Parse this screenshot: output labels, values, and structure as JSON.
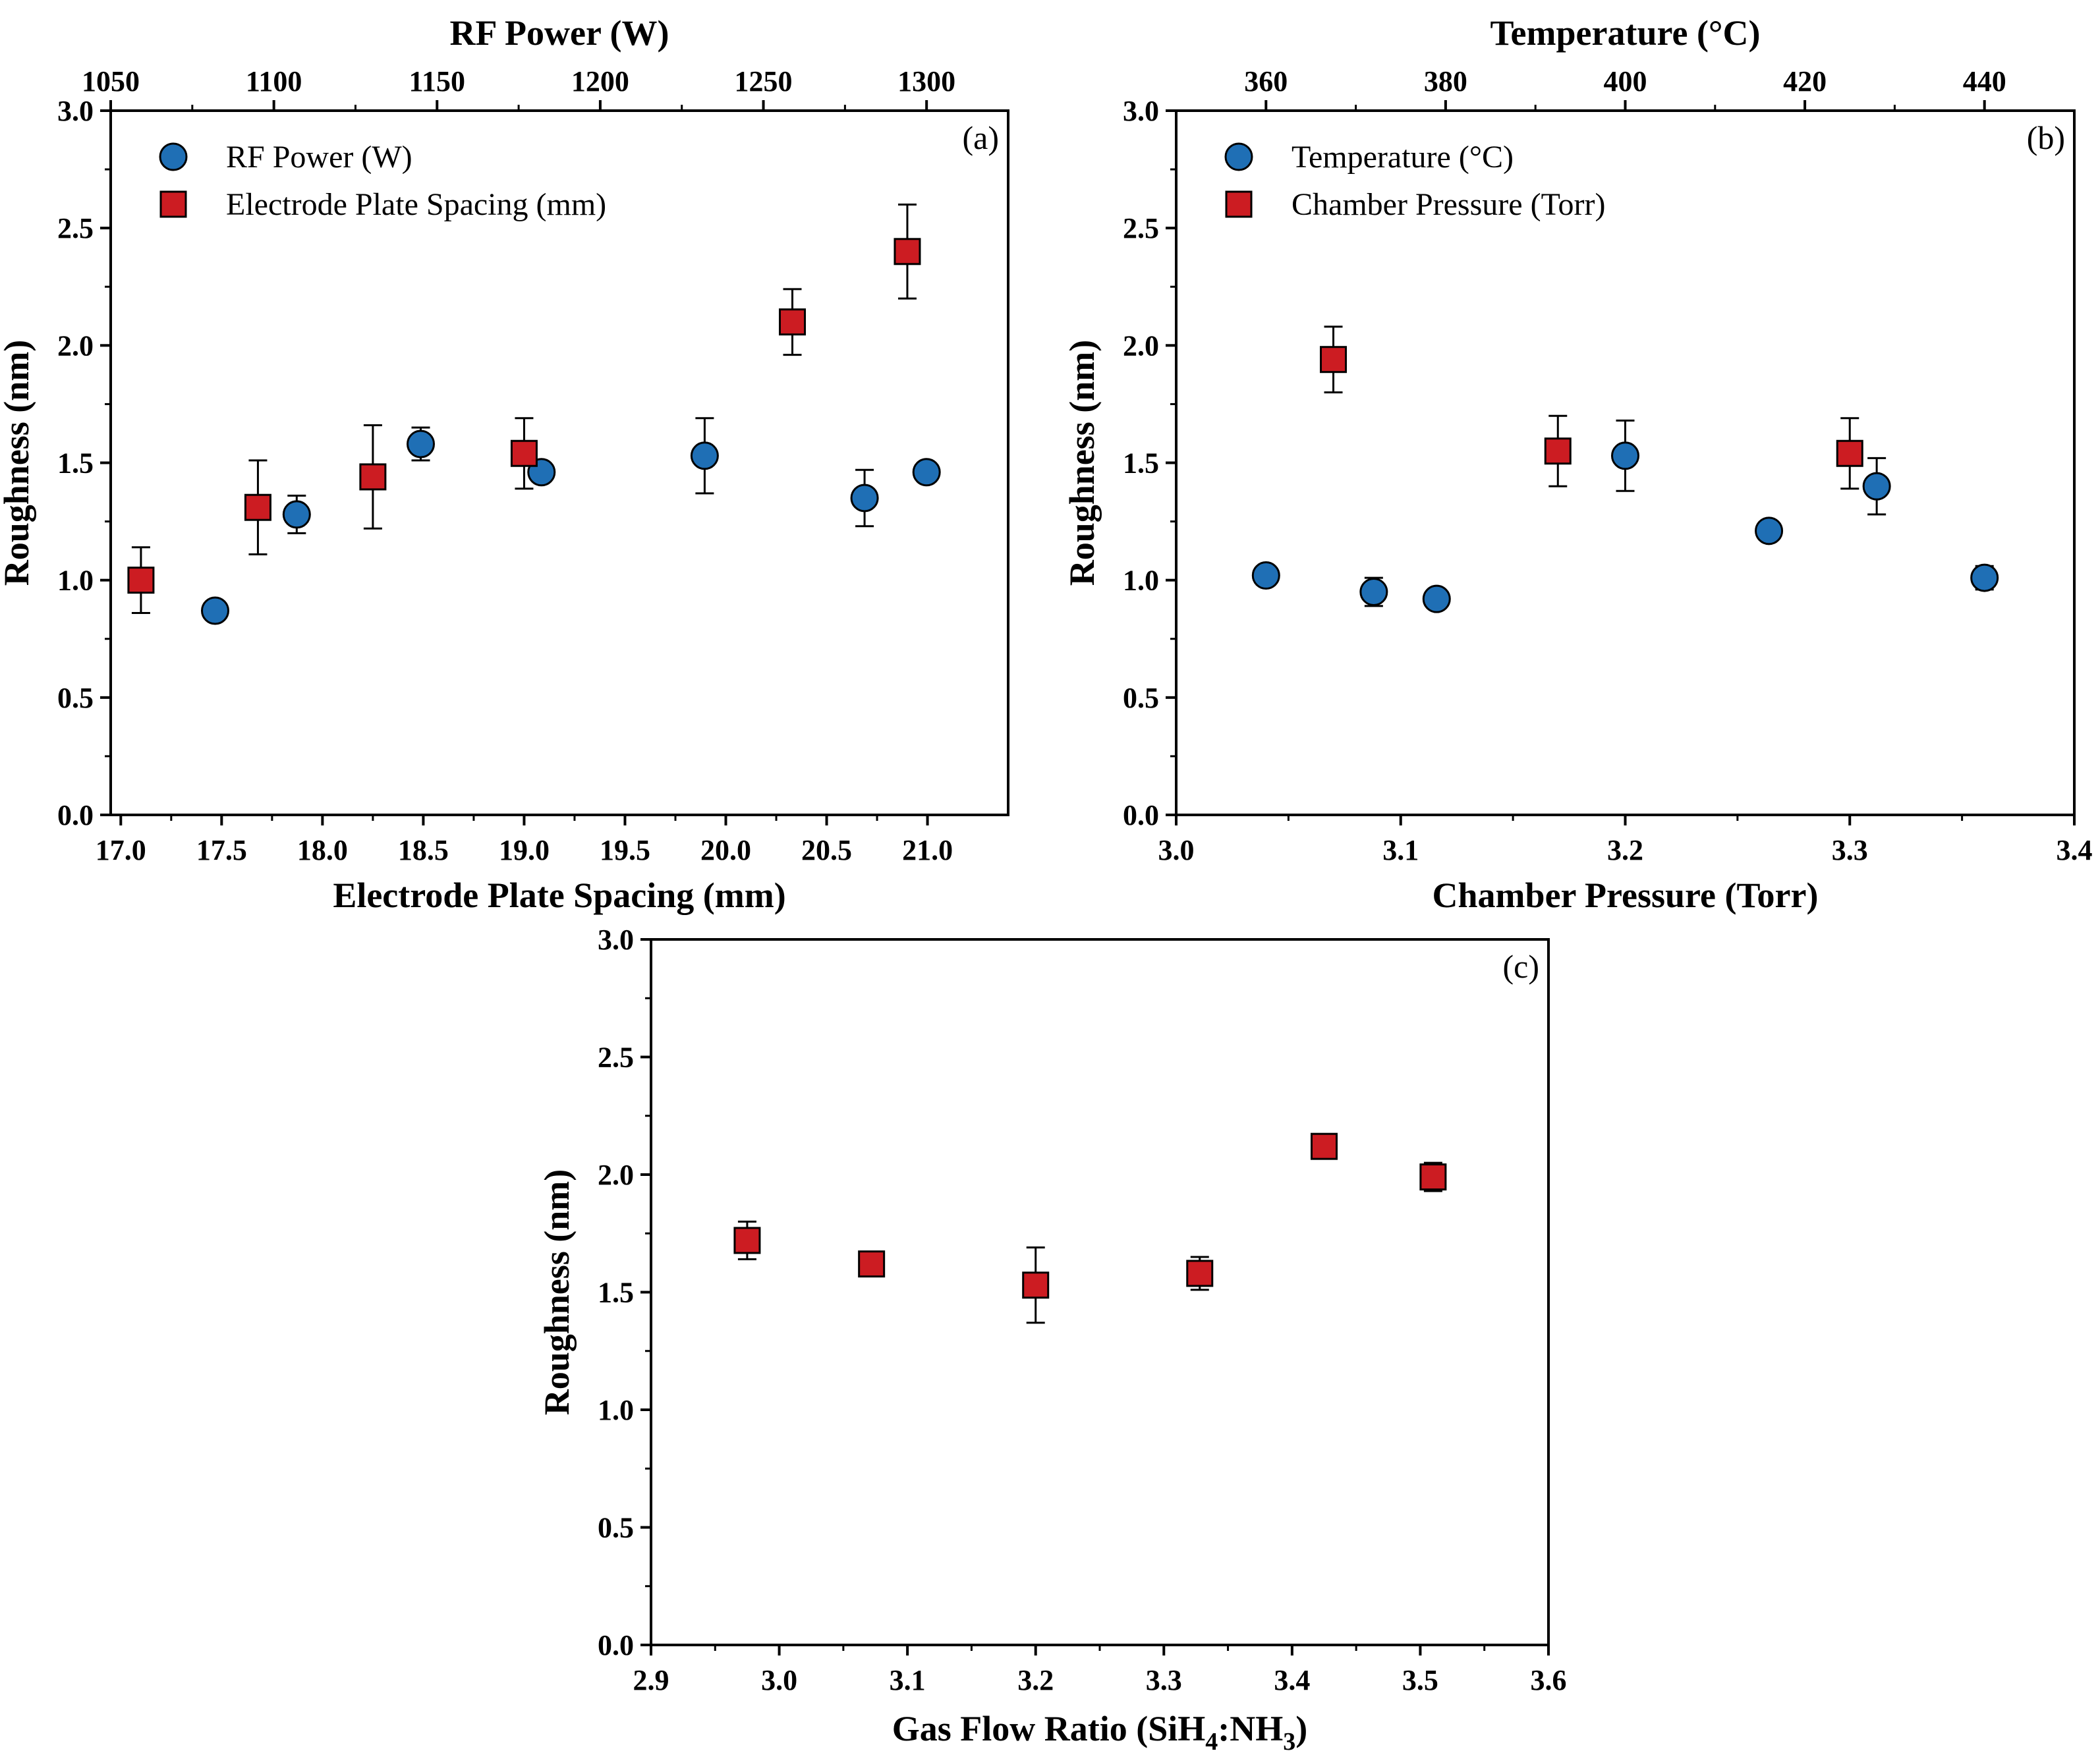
{
  "colors": {
    "blue": "#1f6fb5",
    "red": "#cc1c22",
    "stroke": "#000000"
  },
  "chart_data": [
    {
      "type": "scatter",
      "panel_label": "(a)",
      "ylabel": "Roughness (nm)",
      "ylim": [
        0,
        3.0
      ],
      "yticks": [
        "0.0",
        "0.5",
        "1.0",
        "1.5",
        "2.0",
        "2.5",
        "3.0"
      ],
      "xlabel_bottom": "Electrode Plate Spacing (mm)",
      "xlim_bottom": [
        16.95,
        21.4
      ],
      "xticks_bottom": [
        "17.0",
        "17.5",
        "18.0",
        "18.5",
        "19.0",
        "19.5",
        "20.0",
        "20.5",
        "21.0"
      ],
      "xlabel_top": "RF Power (W)",
      "xlim_top": [
        1050,
        1325
      ],
      "xticks_top": [
        "1050",
        "1100",
        "1150",
        "1200",
        "1250",
        "1300"
      ],
      "legend_position": "top-left",
      "series": [
        {
          "name": "RF Power (W)",
          "marker": "circle",
          "color": "blue",
          "axis": "top",
          "points": [
            {
              "x": 1082,
              "y": 0.87,
              "err": 0.02
            },
            {
              "x": 1107,
              "y": 1.28,
              "err": 0.08
            },
            {
              "x": 1145,
              "y": 1.58,
              "err": 0.07
            },
            {
              "x": 1182,
              "y": 1.46,
              "err": 0.02
            },
            {
              "x": 1232,
              "y": 1.53,
              "err": 0.16
            },
            {
              "x": 1281,
              "y": 1.35,
              "err": 0.12
            },
            {
              "x": 1300,
              "y": 1.46,
              "err": 0.04
            }
          ]
        },
        {
          "name": "Electrode Plate Spacing (mm)",
          "marker": "square",
          "color": "red",
          "axis": "bottom",
          "points": [
            {
              "x": 17.1,
              "y": 1.0,
              "err": 0.14
            },
            {
              "x": 17.68,
              "y": 1.31,
              "err": 0.2
            },
            {
              "x": 18.25,
              "y": 1.44,
              "err": 0.22
            },
            {
              "x": 19.0,
              "y": 1.54,
              "err": 0.15
            },
            {
              "x": 20.33,
              "y": 2.1,
              "err": 0.14
            },
            {
              "x": 20.9,
              "y": 2.4,
              "err": 0.2
            }
          ]
        }
      ]
    },
    {
      "type": "scatter",
      "panel_label": "(b)",
      "ylabel": "Roughness (nm)",
      "ylim": [
        0,
        3.0
      ],
      "yticks": [
        "0.0",
        "0.5",
        "1.0",
        "1.5",
        "2.0",
        "2.5",
        "3.0"
      ],
      "xlabel_bottom": "Chamber Pressure (Torr)",
      "xlim_bottom": [
        3.0,
        3.4
      ],
      "xticks_bottom": [
        "3.0",
        "3.1",
        "3.2",
        "3.3",
        "3.4"
      ],
      "xlabel_top": "Temperature (°C)",
      "xlim_top": [
        350,
        450
      ],
      "xticks_top": [
        "360",
        "380",
        "400",
        "420",
        "440"
      ],
      "legend_position": "top-left",
      "series": [
        {
          "name": "Temperature (°C)",
          "marker": "circle",
          "color": "blue",
          "axis": "top",
          "points": [
            {
              "x": 360,
              "y": 1.02,
              "err": 0.02
            },
            {
              "x": 372,
              "y": 0.95,
              "err": 0.06
            },
            {
              "x": 379,
              "y": 0.92,
              "err": 0.03
            },
            {
              "x": 400,
              "y": 1.53,
              "err": 0.15
            },
            {
              "x": 416,
              "y": 1.21,
              "err": 0.04
            },
            {
              "x": 428,
              "y": 1.4,
              "err": 0.12
            },
            {
              "x": 440,
              "y": 1.01,
              "err": 0.05
            }
          ]
        },
        {
          "name": "Chamber Pressure (Torr)",
          "marker": "square",
          "color": "red",
          "axis": "bottom",
          "points": [
            {
              "x": 3.07,
              "y": 1.94,
              "err": 0.14
            },
            {
              "x": 3.17,
              "y": 1.55,
              "err": 0.15
            },
            {
              "x": 3.3,
              "y": 1.54,
              "err": 0.15
            }
          ]
        }
      ]
    },
    {
      "type": "scatter",
      "panel_label": "(c)",
      "ylabel": "Roughness (nm)",
      "ylim": [
        0,
        3.0
      ],
      "yticks": [
        "0.0",
        "0.5",
        "1.0",
        "1.5",
        "2.0",
        "2.5",
        "3.0"
      ],
      "xlabel_parts": [
        {
          "text": "Gas Flow Ratio (SiH",
          "sub": false
        },
        {
          "text": "4",
          "sub": true
        },
        {
          "text": ":NH",
          "sub": false
        },
        {
          "text": "3",
          "sub": true
        },
        {
          "text": ")",
          "sub": false
        }
      ],
      "xlim_bottom": [
        2.9,
        3.6
      ],
      "xticks_bottom": [
        "2.9",
        "3.0",
        "3.1",
        "3.2",
        "3.3",
        "3.4",
        "3.5",
        "3.6"
      ],
      "series": [
        {
          "name": "",
          "marker": "square",
          "color": "red",
          "axis": "bottom",
          "points": [
            {
              "x": 2.975,
              "y": 1.72,
              "err": 0.08
            },
            {
              "x": 3.072,
              "y": 1.62,
              "err": 0.02
            },
            {
              "x": 3.2,
              "y": 1.53,
              "err": 0.16
            },
            {
              "x": 3.328,
              "y": 1.58,
              "err": 0.07
            },
            {
              "x": 3.425,
              "y": 2.12,
              "err": 0.02
            },
            {
              "x": 3.51,
              "y": 1.99,
              "err": 0.06
            }
          ]
        }
      ]
    }
  ]
}
